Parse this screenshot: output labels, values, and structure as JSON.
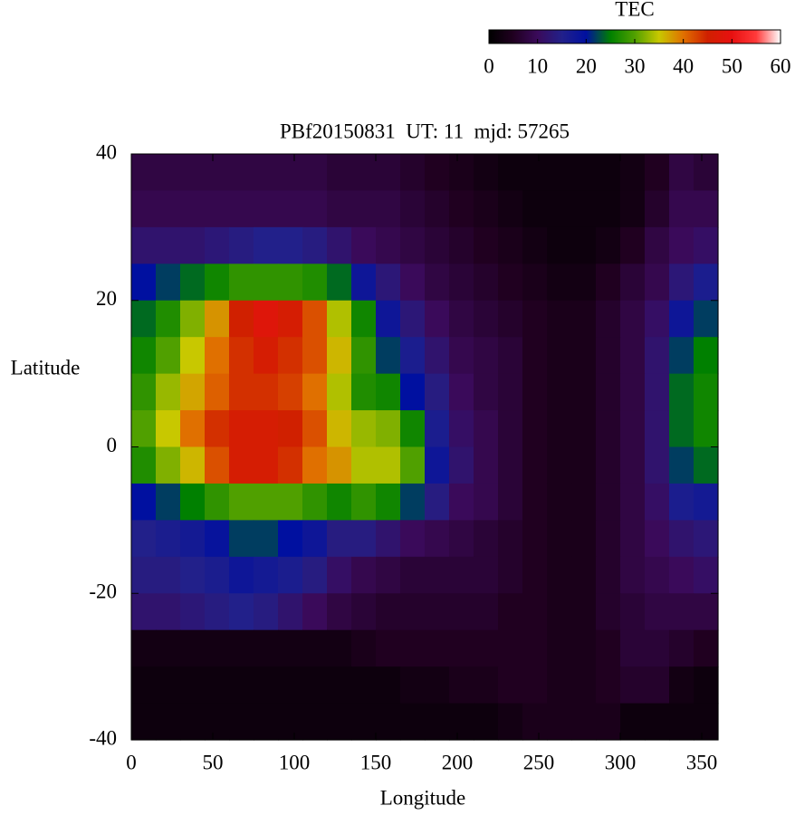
{
  "chart_data": {
    "type": "heatmap",
    "title": "PBf20150831  UT: 11  mjd: 57265",
    "x_label": "Longitude",
    "y_label": "Latitude",
    "colorbar_title": "TEC",
    "xlim": [
      0,
      360
    ],
    "xticks": [
      0,
      50,
      100,
      150,
      200,
      250,
      300,
      350
    ],
    "ylim": [
      -40,
      40
    ],
    "yticks": [
      -40,
      -20,
      0,
      20,
      40
    ],
    "zlim": [
      0,
      60
    ],
    "zticks": [
      0,
      10,
      20,
      30,
      40,
      50,
      60
    ],
    "colors": [
      "#000000",
      "#200020",
      "#3a0a5a",
      "#22208a",
      "#0010a0",
      "#008000",
      "#50a000",
      "#c8c800",
      "#e07000",
      "#d02000",
      "#e81010",
      "#ff3a3a",
      "#ffffff"
    ],
    "x": [
      7.5,
      22.5,
      37.5,
      52.5,
      67.5,
      82.5,
      97.5,
      112.5,
      127.5,
      142.5,
      157.5,
      172.5,
      187.5,
      202.5,
      217.5,
      232.5,
      247.5,
      262.5,
      277.5,
      292.5,
      307.5,
      322.5,
      337.5,
      352.5
    ],
    "y": [
      37.5,
      32.5,
      27.5,
      22.5,
      17.5,
      12.5,
      7.5,
      2.5,
      -2.5,
      -7.5,
      -12.5,
      -17.5,
      -22.5,
      -27.5,
      -32.5,
      -37.5
    ],
    "z": [
      [
        8,
        8,
        8,
        8,
        8,
        8,
        8,
        8,
        7,
        7,
        7,
        6,
        5,
        4,
        3,
        2,
        2,
        2,
        2,
        2,
        3,
        5,
        8,
        7
      ],
      [
        9,
        9,
        9,
        9,
        9,
        9,
        9,
        9,
        8,
        8,
        8,
        7,
        6,
        5,
        4,
        3,
        2,
        2,
        2,
        2,
        3,
        6,
        9,
        9
      ],
      [
        12,
        12,
        12,
        13,
        14,
        15,
        15,
        14,
        12,
        10,
        9,
        8,
        7,
        6,
        5,
        4,
        3,
        2,
        2,
        3,
        5,
        8,
        10,
        11
      ],
      [
        20,
        22,
        24,
        26,
        28,
        28,
        28,
        27,
        24,
        18,
        13,
        10,
        8,
        7,
        6,
        5,
        4,
        3,
        3,
        5,
        7,
        9,
        13,
        16
      ],
      [
        24,
        27,
        32,
        38,
        45,
        48,
        46,
        42,
        34,
        26,
        18,
        13,
        10,
        8,
        7,
        6,
        5,
        4,
        4,
        6,
        8,
        11,
        18,
        22
      ],
      [
        26,
        30,
        35,
        40,
        44,
        46,
        44,
        42,
        36,
        28,
        22,
        16,
        12,
        9,
        8,
        7,
        5,
        4,
        4,
        6,
        8,
        12,
        22,
        25
      ],
      [
        28,
        33,
        37,
        41,
        44,
        44,
        43,
        40,
        34,
        27,
        26,
        20,
        14,
        10,
        8,
        7,
        5,
        4,
        4,
        6,
        8,
        12,
        24,
        26
      ],
      [
        30,
        35,
        40,
        44,
        46,
        46,
        45,
        42,
        36,
        33,
        32,
        26,
        16,
        11,
        9,
        7,
        5,
        4,
        4,
        6,
        8,
        12,
        24,
        26
      ],
      [
        27,
        32,
        36,
        42,
        46,
        46,
        44,
        40,
        38,
        34,
        34,
        30,
        18,
        12,
        9,
        7,
        5,
        4,
        4,
        6,
        8,
        12,
        22,
        24
      ],
      [
        20,
        22,
        25,
        28,
        30,
        30,
        30,
        28,
        26,
        28,
        26,
        22,
        14,
        10,
        9,
        7,
        5,
        4,
        4,
        6,
        8,
        11,
        16,
        17
      ],
      [
        15,
        16,
        17,
        19,
        22,
        22,
        20,
        18,
        14,
        14,
        12,
        10,
        9,
        8,
        7,
        6,
        5,
        4,
        4,
        6,
        8,
        10,
        12,
        13
      ],
      [
        14,
        14,
        15,
        16,
        18,
        17,
        16,
        14,
        11,
        9,
        8,
        7,
        7,
        7,
        7,
        6,
        5,
        4,
        4,
        6,
        8,
        9,
        10,
        11
      ],
      [
        12,
        12,
        13,
        14,
        15,
        14,
        12,
        10,
        8,
        7,
        6,
        6,
        6,
        6,
        6,
        5,
        5,
        4,
        4,
        6,
        7,
        8,
        8,
        8
      ],
      [
        3,
        3,
        3,
        3,
        3,
        3,
        3,
        3,
        3,
        4,
        5,
        5,
        5,
        5,
        5,
        5,
        5,
        4,
        4,
        5,
        7,
        7,
        6,
        5
      ],
      [
        2,
        2,
        2,
        2,
        2,
        2,
        2,
        2,
        2,
        2,
        2,
        3,
        3,
        4,
        4,
        5,
        5,
        4,
        4,
        5,
        6,
        6,
        3,
        2
      ],
      [
        2,
        2,
        2,
        2,
        2,
        2,
        2,
        2,
        2,
        2,
        2,
        2,
        2,
        2,
        2,
        3,
        4,
        4,
        4,
        4,
        2,
        2,
        2,
        2
      ]
    ]
  }
}
